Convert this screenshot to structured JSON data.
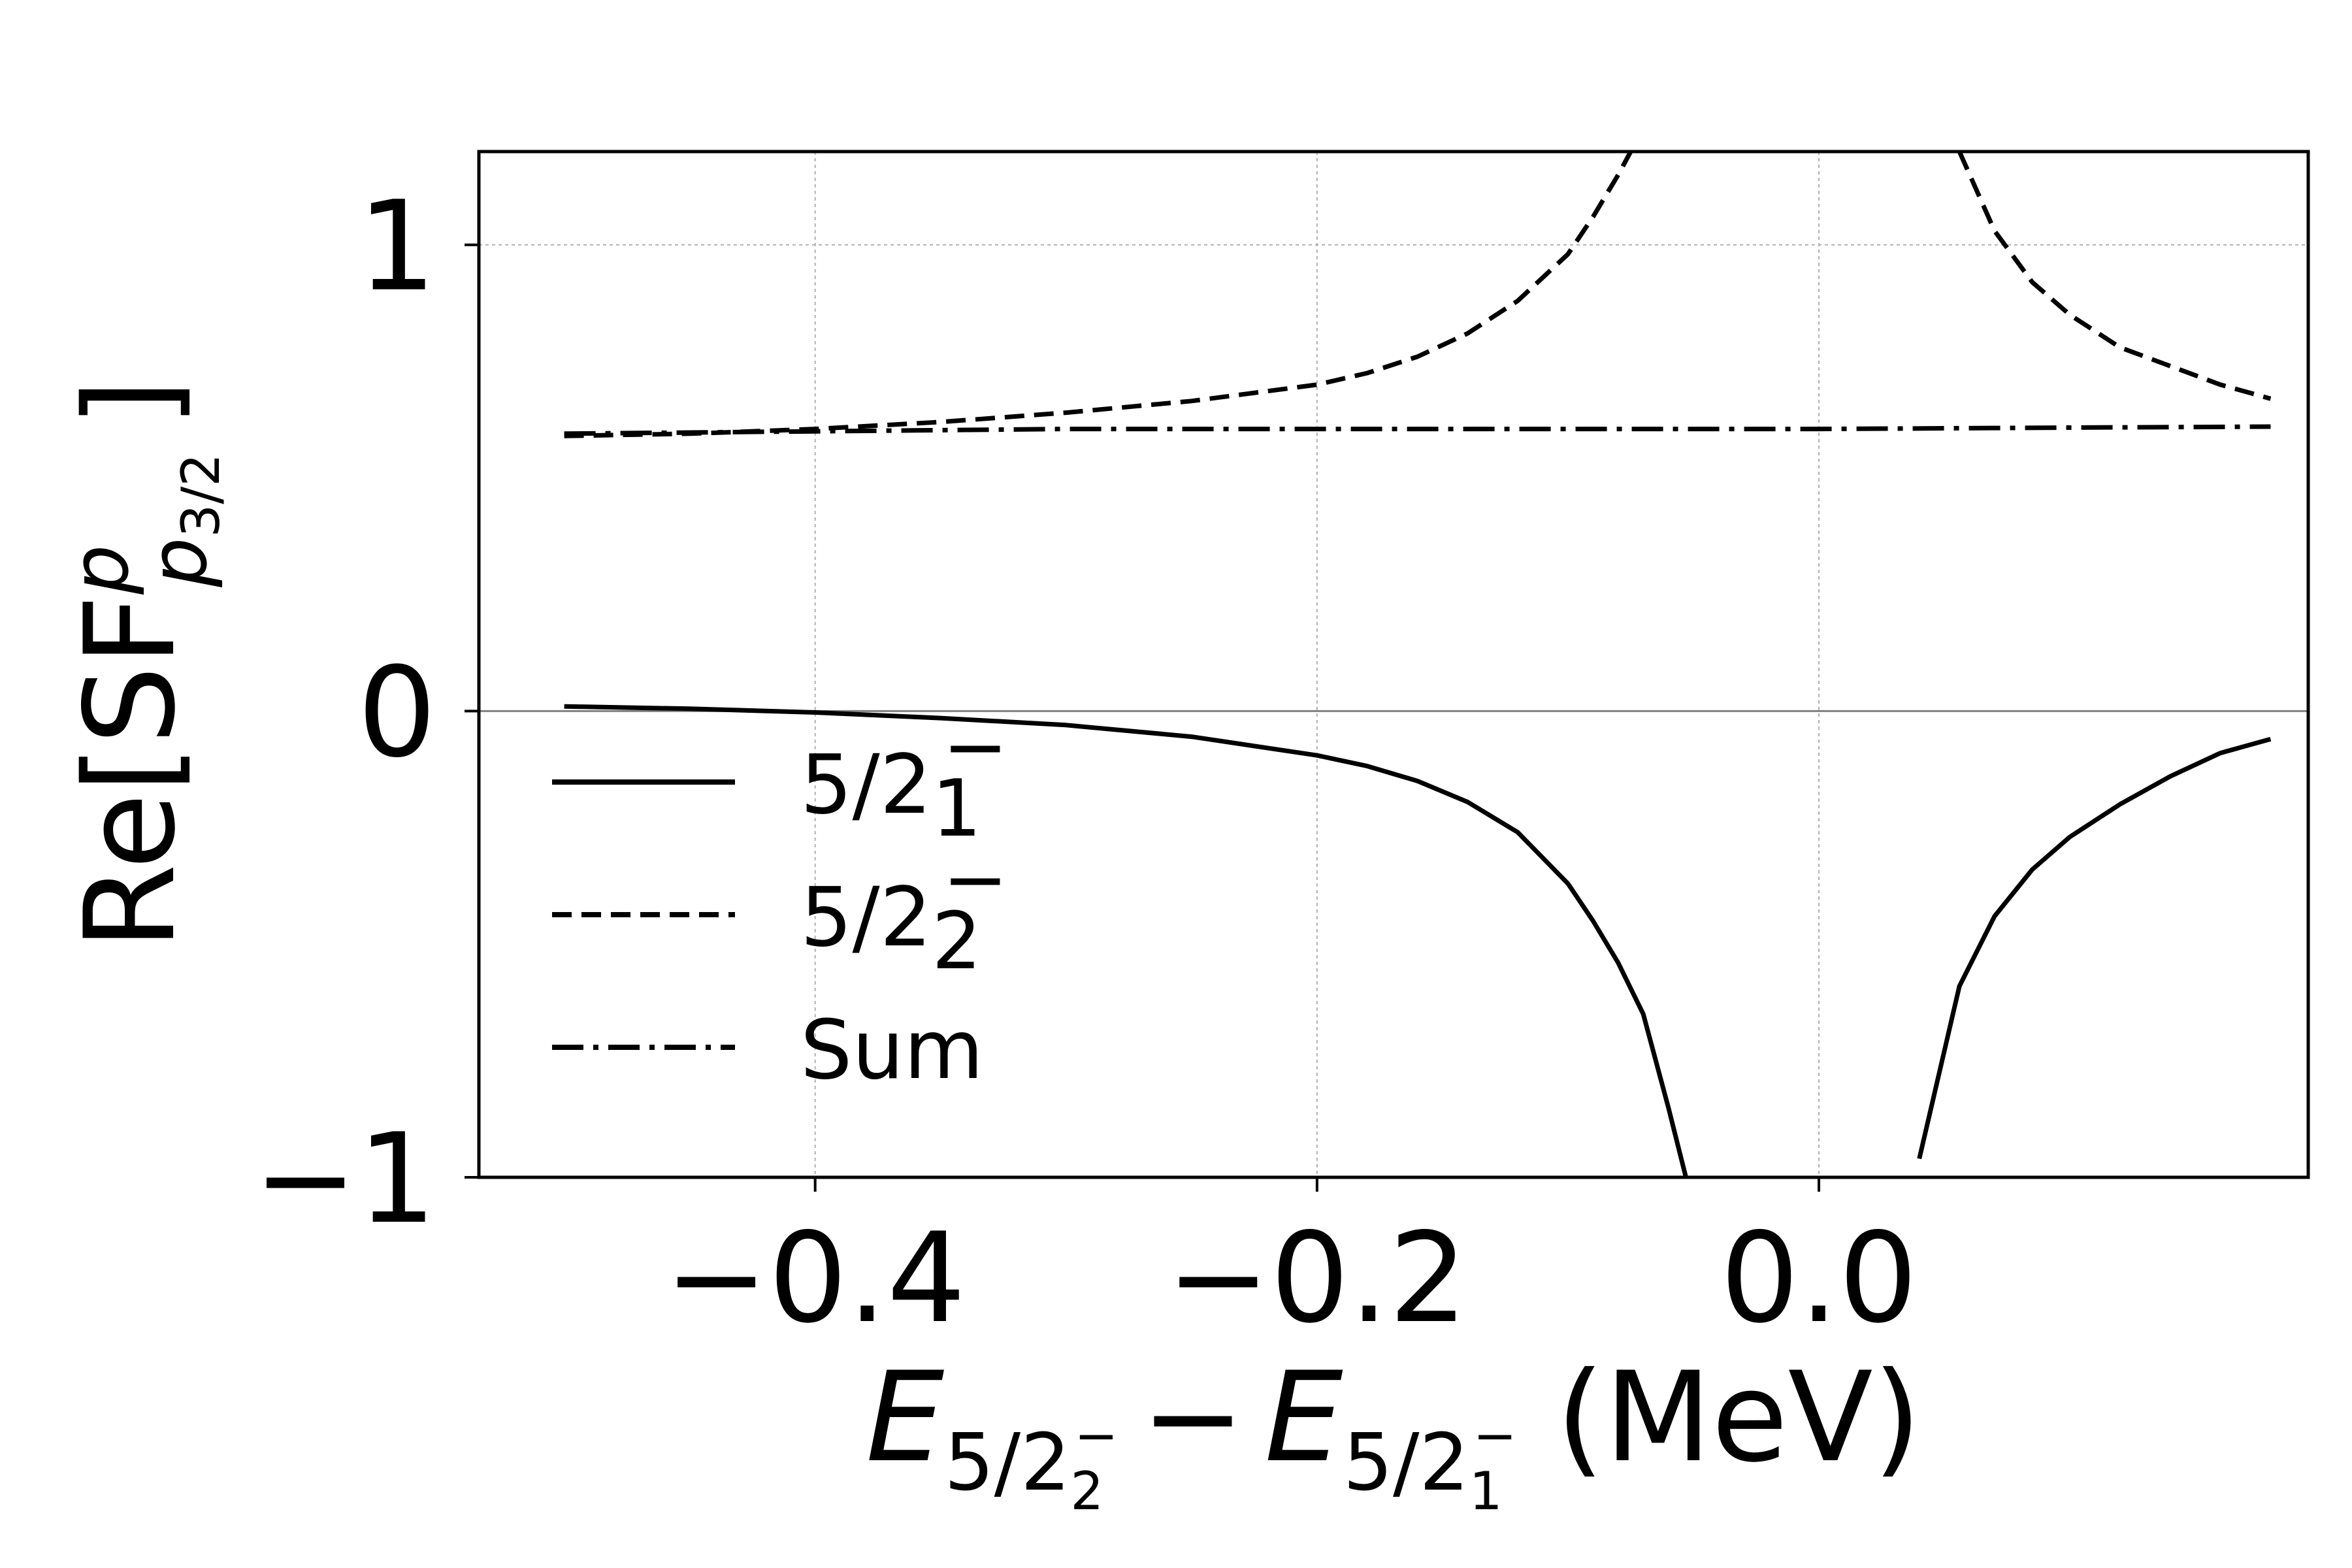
{
  "chart_data": {
    "type": "line",
    "title": "",
    "xlabel": {
      "base": "E",
      "sub1": "5/2",
      "sub1_index": "2",
      "sub1_sup": "−",
      "minus": "−",
      "base2": "E",
      "sub2": "5/2",
      "sub2_index": "1",
      "sub2_sup": "−",
      "unit": "(MeV)"
    },
    "ylabel": {
      "prefix": "Re[SF",
      "sup": "p",
      "sub": "p",
      "subsub": "3/2",
      "suffix": "]"
    },
    "xlim": [
      -0.534,
      0.195
    ],
    "ylim": [
      -1.0,
      1.2
    ],
    "x_ticks": [
      -0.4,
      -0.2,
      0.0
    ],
    "x_tick_labels": [
      "−0.4",
      "−0.2",
      "0.0"
    ],
    "y_ticks": [
      -1,
      0,
      1
    ],
    "y_tick_labels": [
      "−1",
      "0",
      "1"
    ],
    "grid": true,
    "zero_line": true,
    "legend_position": "lower-left",
    "series": [
      {
        "name": "5/2",
        "name_sub": "1",
        "name_sup": "−",
        "style": "solid",
        "x": [
          -0.5,
          -0.45,
          -0.4,
          -0.35,
          -0.3,
          -0.25,
          -0.2,
          -0.18,
          -0.16,
          -0.14,
          -0.12,
          -0.1,
          -0.09,
          -0.08,
          -0.07,
          -0.06,
          -0.053
        ],
        "y": [
          0.01,
          0.005,
          -0.003,
          -0.015,
          -0.03,
          -0.055,
          -0.095,
          -0.118,
          -0.15,
          -0.195,
          -0.26,
          -0.37,
          -0.45,
          -0.54,
          -0.65,
          -0.85,
          -1.0
        ]
      },
      {
        "name": "5/2",
        "name_sub": "1",
        "name_sup": "−",
        "style": "solid",
        "x": [
          0.04,
          0.056,
          0.07,
          0.085,
          0.1,
          0.12,
          0.14,
          0.16,
          0.18
        ],
        "y": [
          -0.96,
          -0.59,
          -0.44,
          -0.34,
          -0.27,
          -0.2,
          -0.14,
          -0.09,
          -0.06
        ]
      },
      {
        "name": "5/2",
        "name_sub": "2",
        "name_sup": "−",
        "style": "dashed",
        "x": [
          -0.5,
          -0.45,
          -0.4,
          -0.35,
          -0.3,
          -0.25,
          -0.2,
          -0.18,
          -0.16,
          -0.14,
          -0.12,
          -0.1,
          -0.09,
          -0.08,
          -0.075
        ],
        "y": [
          0.59,
          0.595,
          0.605,
          0.62,
          0.64,
          0.665,
          0.7,
          0.725,
          0.76,
          0.81,
          0.88,
          0.98,
          1.06,
          1.15,
          1.2
        ]
      },
      {
        "name": "5/2",
        "name_sub": "2",
        "name_sup": "−",
        "style": "dashed",
        "x": [
          0.056,
          0.07,
          0.085,
          0.1,
          0.12,
          0.14,
          0.16,
          0.18
        ],
        "y": [
          1.2,
          1.03,
          0.92,
          0.85,
          0.78,
          0.74,
          0.7,
          0.67
        ]
      },
      {
        "name": "Sum",
        "style": "dashdot",
        "x": [
          -0.5,
          -0.4,
          -0.3,
          -0.2,
          -0.1,
          0.0,
          0.1,
          0.18
        ],
        "y": [
          0.595,
          0.6,
          0.605,
          0.605,
          0.605,
          0.605,
          0.608,
          0.61
        ]
      }
    ]
  }
}
